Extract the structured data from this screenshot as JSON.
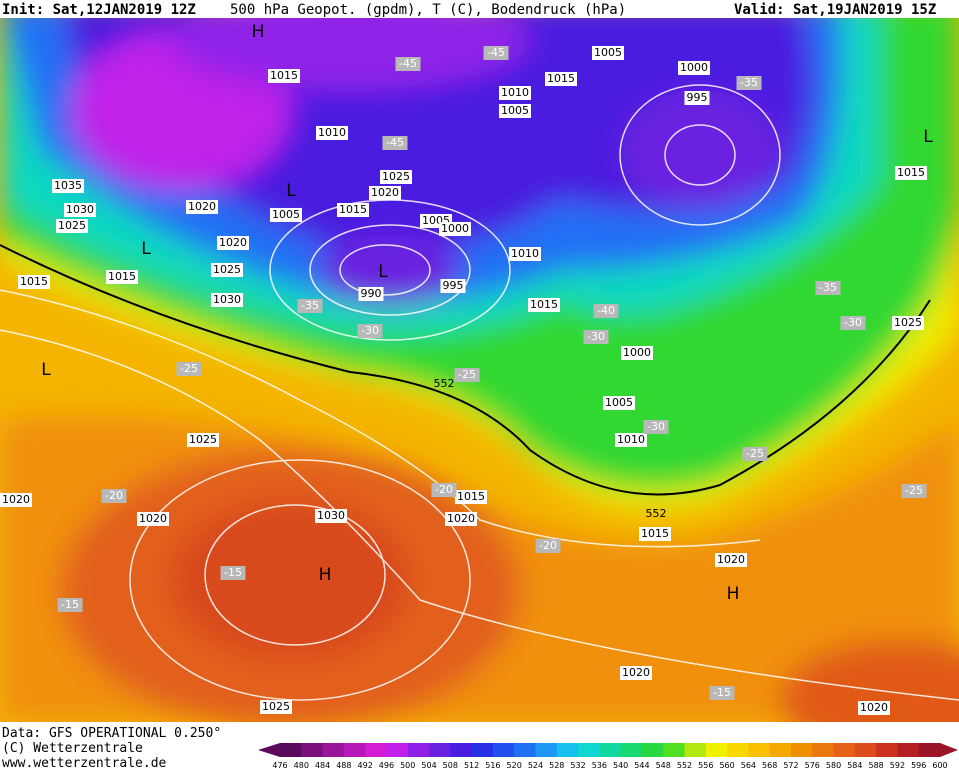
{
  "header": {
    "init": "Init: Sat,12JAN2019 12Z",
    "title": "500 hPa Geopot. (gpdm), T (C), Bodendruck (hPa)",
    "valid": "Valid: Sat,19JAN2019 15Z"
  },
  "footer": {
    "source": "Data: GFS OPERATIONAL 0.250°",
    "copyright": "(C) Wetterzentrale",
    "url": "www.wetterzentrale.de"
  },
  "colorbar": {
    "levels": [
      "476",
      "480",
      "484",
      "488",
      "492",
      "496",
      "500",
      "504",
      "508",
      "512",
      "516",
      "520",
      "524",
      "528",
      "532",
      "536",
      "540",
      "544",
      "548",
      "552",
      "556",
      "560",
      "564",
      "568",
      "572",
      "576",
      "580",
      "584",
      "588",
      "592",
      "596",
      "600"
    ],
    "colors": [
      "#5a0a5a",
      "#7a107a",
      "#9a149a",
      "#b818b8",
      "#d41cd4",
      "#c020e8",
      "#9020e8",
      "#6a20e0",
      "#4a1ee0",
      "#2a30e8",
      "#2050f0",
      "#2070f4",
      "#1c98f4",
      "#18c0f0",
      "#10d8d0",
      "#10d8a0",
      "#18d870",
      "#28d840",
      "#50e020",
      "#b0e810",
      "#f0f000",
      "#f8d800",
      "#f8c000",
      "#f4a800",
      "#f09000",
      "#ec7810",
      "#e66018",
      "#dc4c1c",
      "#cc3420",
      "#b42024",
      "#9c1428"
    ]
  },
  "map": {
    "pressure_labels": [
      "1015",
      "1010",
      "1020",
      "1035",
      "1030",
      "1025",
      "1020",
      "1025",
      "1015",
      "1015",
      "1030",
      "1005",
      "1025",
      "1020",
      "1015",
      "1005",
      "1000",
      "990",
      "995",
      "1005",
      "1015",
      "1010",
      "1005",
      "1000",
      "995",
      "1015",
      "1010",
      "1015",
      "1000",
      "1005",
      "1010",
      "1025",
      "1025",
      "1020",
      "1020",
      "1030",
      "1015",
      "1020",
      "1015",
      "1020",
      "1020",
      "1025",
      "1020"
    ],
    "temperature_labels": [
      "-45",
      "-45",
      "-45",
      "-35",
      "-35",
      "-30",
      "-25",
      "-25",
      "-40",
      "-30",
      "-35",
      "-30",
      "-30",
      "-25",
      "-25",
      "-20",
      "-20",
      "-20",
      "-15",
      "-15",
      "-15"
    ],
    "centers": [
      "H",
      "L",
      "L",
      "L",
      "L",
      "L",
      "H",
      "H"
    ],
    "geopotential_labels": [
      "552",
      "552"
    ]
  }
}
